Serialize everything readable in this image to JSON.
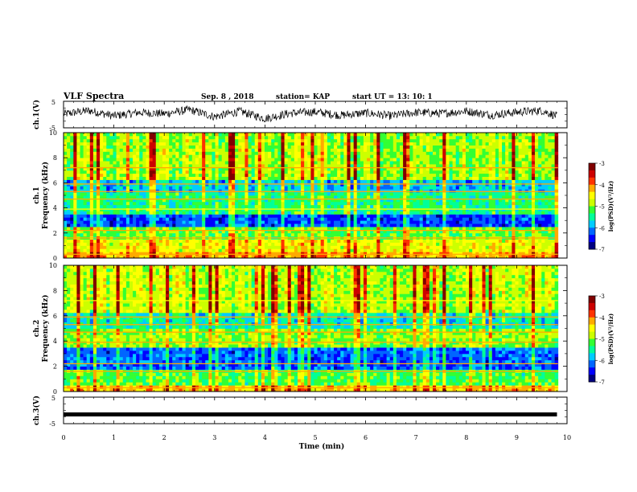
{
  "header": {
    "title": "VLF Spectra",
    "date": "Sep. 8 , 2018",
    "station": "station= KAP",
    "start": "start UT = 13: 10: 1"
  },
  "colors": {
    "scale": [
      "#000080",
      "#0000ff",
      "#0066ff",
      "#00ccff",
      "#00ff99",
      "#33ff33",
      "#ccff00",
      "#ffff00",
      "#ffaa00",
      "#ff3300",
      "#cc0000",
      "#800000"
    ],
    "trace": "#000000",
    "axis": "#000000"
  },
  "chart_data": [
    {
      "type": "line",
      "panel": "ch1-waveform",
      "ylabel": "ch.1(V)",
      "ylim": [
        -5,
        5
      ],
      "yticks": [
        "5",
        "-5"
      ],
      "xlim": [
        0,
        10
      ],
      "description_of_signal": "noisy",
      "x": [
        0,
        0.5,
        1,
        1.5,
        2,
        2.5,
        3,
        3.5,
        4,
        4.5,
        5,
        5.5,
        6,
        6.5,
        7,
        7.5,
        8,
        8.5,
        9,
        9.5,
        9.8
      ],
      "y": [
        0.2,
        1.5,
        -0.5,
        0.8,
        0.3,
        1.8,
        -0.8,
        1.2,
        -1.5,
        0.5,
        1.0,
        -0.3,
        0.6,
        -0.5,
        0.8,
        0.4,
        1.3,
        -0.2,
        0.9,
        1.5,
        -0.6
      ]
    },
    {
      "type": "heatmap",
      "panel": "ch1-spectrogram",
      "ylabel": "ch.1\nFrequency (kHz)",
      "ylim": [
        0,
        10
      ],
      "yticks": [
        "0",
        "2",
        "4",
        "6",
        "8",
        "10"
      ],
      "xlim": [
        0,
        10
      ],
      "colorbar": {
        "label": "log(PSD)(V²/Hz)",
        "range": [
          -7,
          -3
        ],
        "ticks": [
          "-3",
          "-4",
          "-5",
          "-6",
          "-7"
        ]
      },
      "band_levels_by_kHz": [
        {
          "from": 0,
          "to": 0.5,
          "level": -4.2
        },
        {
          "from": 0.5,
          "to": 1.5,
          "level": -4.6
        },
        {
          "from": 1.5,
          "to": 2.5,
          "level": -5.1
        },
        {
          "from": 2.5,
          "to": 3.5,
          "level": -6.3
        },
        {
          "from": 3.5,
          "to": 5.2,
          "level": -5.4
        },
        {
          "from": 5.2,
          "to": 6.2,
          "level": -5.8
        },
        {
          "from": 6.2,
          "to": 10,
          "level": -4.9
        }
      ]
    },
    {
      "type": "heatmap",
      "panel": "ch2-spectrogram",
      "ylabel": "ch.2\nFrequency (kHz)",
      "ylim": [
        0,
        10
      ],
      "yticks": [
        "0",
        "2",
        "4",
        "6",
        "8",
        "10"
      ],
      "xlim": [
        0,
        10
      ],
      "colorbar": {
        "label": "log(PSD)(V²/Hz)",
        "range": [
          -7,
          -3
        ],
        "ticks": [
          "-3",
          "-4",
          "-5",
          "-6",
          "-7"
        ]
      },
      "band_levels_by_kHz": [
        {
          "from": 0,
          "to": 0.5,
          "level": -4.3
        },
        {
          "from": 0.5,
          "to": 1.8,
          "level": -5.2
        },
        {
          "from": 1.8,
          "to": 3.4,
          "level": -6.2
        },
        {
          "from": 3.4,
          "to": 5.0,
          "level": -5.0
        },
        {
          "from": 5.0,
          "to": 6.3,
          "level": -5.6
        },
        {
          "from": 6.3,
          "to": 10,
          "level": -4.8
        }
      ]
    },
    {
      "type": "line",
      "panel": "ch3-waveform",
      "ylabel": "ch.3(V)",
      "ylim": [
        -5,
        5
      ],
      "yticks": [
        "5",
        "-5"
      ],
      "xlim": [
        0,
        10
      ],
      "x": [
        0,
        9.8
      ],
      "y": [
        -1.5,
        -1.5
      ]
    }
  ],
  "xaxis": {
    "label": "Time (min)",
    "ticks": [
      "0",
      "1",
      "2",
      "3",
      "4",
      "5",
      "6",
      "7",
      "8",
      "9",
      "10"
    ]
  }
}
